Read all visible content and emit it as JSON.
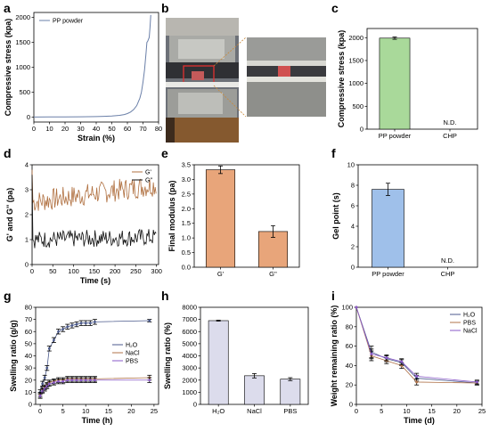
{
  "panel_letters": [
    "a",
    "b",
    "c",
    "d",
    "e",
    "f",
    "g",
    "h",
    "i"
  ],
  "photo_annotation": "",
  "colors": {
    "green": "#a9d99a",
    "orange": "#e8a57a",
    "blue": "#9fc0ea",
    "lavender": "#dcdcec",
    "line_a": "#6a7fa8",
    "line_d1": "#b07040",
    "line_d2": "#111111",
    "s_h2o": "#4b5a8c",
    "s_nacl": "#b0734a",
    "s_pbs": "#8a5ac8"
  },
  "chart_data": [
    {
      "panel": "a",
      "type": "line",
      "xlabel": "Strain (%)",
      "ylabel": "Compressive stress (kpa)",
      "xlim": [
        0,
        80
      ],
      "ylim": [
        -100,
        2100
      ],
      "xticks": [
        "0",
        "10",
        "20",
        "30",
        "40",
        "50",
        "60",
        "70",
        "80"
      ],
      "yticks": [
        "0",
        "500",
        "1000",
        "1500",
        "2000"
      ],
      "series": [
        {
          "name": "PP powder",
          "x": [
            0,
            10,
            20,
            30,
            40,
            45,
            50,
            55,
            58,
            60,
            62,
            64,
            66,
            68,
            69,
            70,
            71,
            72,
            72.5,
            73,
            73.5,
            74,
            74.5,
            75
          ],
          "y": [
            0,
            2,
            4,
            6,
            10,
            14,
            20,
            35,
            50,
            70,
            100,
            150,
            230,
            380,
            500,
            700,
            950,
            1300,
            1500,
            1520,
            1560,
            1600,
            1800,
            2050
          ]
        }
      ],
      "legend": "top-left"
    },
    {
      "panel": "c",
      "type": "bar",
      "xlabel": "",
      "ylabel": "Compressive stress (kpa)",
      "ylim": [
        0,
        2200
      ],
      "yticks": [
        "0",
        "500",
        "1000",
        "1500",
        "2000"
      ],
      "categories": [
        "PP powder",
        "CHP"
      ],
      "values": [
        1990,
        null
      ],
      "errors": [
        25,
        null
      ],
      "data_labels": [
        "",
        "N.D."
      ]
    },
    {
      "panel": "d",
      "type": "line",
      "xlabel": "Time (s)",
      "ylabel": "G' and G'' (pa)",
      "xlim": [
        0,
        305
      ],
      "ylim": [
        0,
        4
      ],
      "xticks": [
        "0",
        "50",
        "100",
        "150",
        "200",
        "250",
        "300"
      ],
      "yticks": [
        "0",
        "1",
        "2",
        "3",
        "4"
      ],
      "series": [
        {
          "name": "G'",
          "start": 2.5,
          "end": 3.2
        },
        {
          "name": "G''",
          "start": 1.0,
          "end": 1.1
        }
      ],
      "legend": "top-right"
    },
    {
      "panel": "e",
      "type": "bar",
      "xlabel": "",
      "ylabel": "Final modulus (pa)",
      "ylim": [
        0,
        3.5
      ],
      "yticks": [
        "0.0",
        "0.5",
        "1.0",
        "1.5",
        "2.0",
        "2.5",
        "3.0",
        "3.5"
      ],
      "categories": [
        "G'",
        "G''"
      ],
      "values": [
        3.33,
        1.22
      ],
      "errors": [
        0.13,
        0.2
      ]
    },
    {
      "panel": "f",
      "type": "bar",
      "xlabel": "",
      "ylabel": "Gel point (s)",
      "ylim": [
        0,
        10
      ],
      "yticks": [
        "0",
        "2",
        "4",
        "6",
        "8",
        "10"
      ],
      "categories": [
        "PP powder",
        "CHP"
      ],
      "values": [
        7.6,
        null
      ],
      "errors": [
        0.6,
        null
      ],
      "data_labels": [
        "",
        "N.D."
      ]
    },
    {
      "panel": "g",
      "type": "line",
      "xlabel": "Time (h)",
      "ylabel": "Swelling ratio (g/g)",
      "xlim": [
        -1,
        26
      ],
      "ylim": [
        0,
        80
      ],
      "xticks": [
        "0",
        "5",
        "10",
        "15",
        "20",
        "25"
      ],
      "yticks": [
        "0",
        "10",
        "20",
        "30",
        "40",
        "50",
        "60",
        "70",
        "80"
      ],
      "series": [
        {
          "name": "H₂O",
          "x": [
            0,
            0.5,
            1,
            1.5,
            2,
            3,
            4,
            5,
            6,
            7,
            8,
            9,
            10,
            11,
            12,
            24
          ],
          "y": [
            10,
            17,
            22,
            30,
            46,
            53,
            60,
            62,
            64,
            65,
            66,
            67,
            67,
            67,
            68,
            69
          ],
          "errors": [
            2,
            2,
            2,
            2,
            2,
            2,
            2,
            2,
            2,
            2,
            2,
            2,
            2,
            2,
            2,
            1
          ]
        },
        {
          "name": "NaCl",
          "x": [
            0,
            0.5,
            1,
            1.5,
            2,
            3,
            4,
            5,
            6,
            7,
            8,
            9,
            10,
            11,
            12,
            24
          ],
          "y": [
            8,
            12,
            14,
            16,
            18,
            19,
            20,
            20,
            21,
            21,
            21,
            21,
            21,
            21,
            21,
            22
          ],
          "errors": [
            2,
            2,
            2,
            2,
            2,
            2,
            2,
            2,
            2,
            2,
            2,
            2,
            2,
            2,
            2,
            2
          ]
        },
        {
          "name": "PBS",
          "x": [
            0,
            0.5,
            1,
            1.5,
            2,
            3,
            4,
            5,
            6,
            7,
            8,
            9,
            10,
            11,
            12,
            24
          ],
          "y": [
            7,
            11,
            13,
            15,
            17,
            18,
            19,
            19,
            20,
            20,
            20,
            20,
            20,
            20,
            20,
            20
          ],
          "errors": [
            2,
            2,
            2,
            2,
            2,
            2,
            2,
            2,
            2,
            2,
            2,
            2,
            2,
            2,
            2,
            2
          ]
        }
      ],
      "legend": "center-right"
    },
    {
      "panel": "h",
      "type": "bar",
      "xlabel": "",
      "ylabel": "Swelling ratio (%)",
      "ylim": [
        0,
        8000
      ],
      "yticks": [
        "0",
        "1000",
        "2000",
        "3000",
        "4000",
        "5000",
        "6000",
        "7000",
        "8000"
      ],
      "categories": [
        "H₂O",
        "NaCl",
        "PBS"
      ],
      "values": [
        6900,
        2360,
        2080
      ],
      "errors": [
        40,
        180,
        120
      ]
    },
    {
      "panel": "i",
      "type": "line",
      "xlabel": "Time (d)",
      "ylabel": "Weight remaining ratio (%)",
      "xlim": [
        0,
        25
      ],
      "ylim": [
        0,
        100
      ],
      "xticks": [
        "0",
        "5",
        "10",
        "15",
        "20",
        "25"
      ],
      "yticks": [
        "0",
        "20",
        "40",
        "60",
        "80",
        "100"
      ],
      "series": [
        {
          "name": "H₂O",
          "x": [
            0,
            3,
            6,
            9,
            12,
            24
          ],
          "y": [
            100,
            54,
            47,
            43,
            27,
            22
          ],
          "errors": [
            0,
            6,
            3,
            3,
            3,
            2
          ]
        },
        {
          "name": "PBS",
          "x": [
            0,
            3,
            6,
            9,
            12,
            24
          ],
          "y": [
            100,
            50,
            45,
            40,
            23,
            22
          ],
          "errors": [
            0,
            5,
            3,
            3,
            3,
            2
          ]
        },
        {
          "name": "NaCl",
          "x": [
            0,
            3,
            6,
            9,
            12,
            24
          ],
          "y": [
            100,
            52,
            48,
            44,
            29,
            23
          ],
          "errors": [
            0,
            5,
            3,
            3,
            3,
            2
          ]
        }
      ],
      "legend": "top-right"
    }
  ]
}
